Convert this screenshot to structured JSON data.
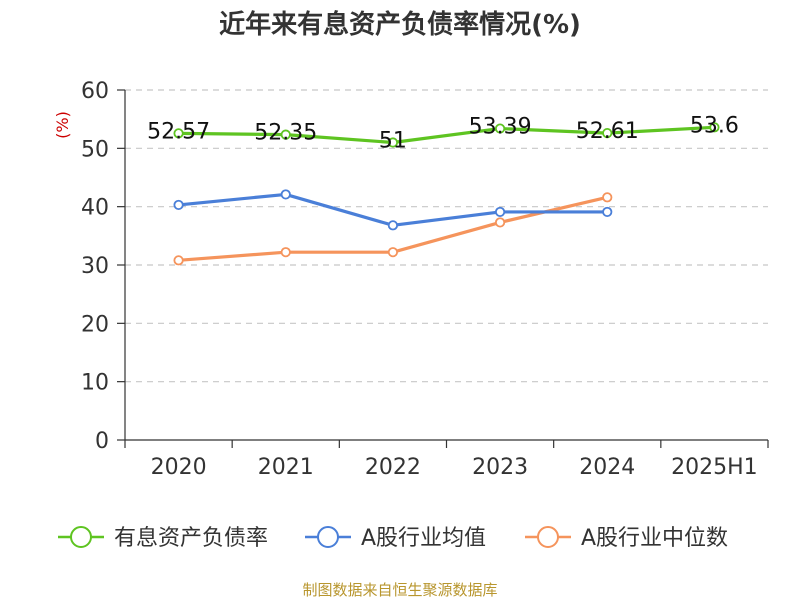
{
  "chart_data": {
    "type": "line",
    "title": "近年来有息资产负债率情况(%)",
    "ylabel": "(%)",
    "ylim": [
      0,
      60
    ],
    "yticks": [
      0,
      10,
      20,
      30,
      40,
      50,
      60
    ],
    "categories": [
      "2020",
      "2021",
      "2022",
      "2023",
      "2024",
      "2025H1"
    ],
    "grid": true,
    "legend_position": "bottom",
    "series": [
      {
        "name": "有息资产负债率",
        "color": "#5ec421",
        "values": [
          52.57,
          52.35,
          51,
          53.39,
          52.61,
          53.6
        ],
        "labels": [
          "52.57",
          "52.35",
          "51",
          "53.39",
          "52.61",
          "53.6"
        ]
      },
      {
        "name": "A股行业均值",
        "color": "#4a7fd8",
        "values": [
          40.3,
          42.1,
          36.8,
          39.1,
          39.1,
          null
        ]
      },
      {
        "name": "A股行业中位数",
        "color": "#f5945c",
        "values": [
          30.8,
          32.2,
          32.2,
          37.3,
          41.6,
          null
        ]
      }
    ]
  },
  "source": "制图数据来自恒生聚源数据库"
}
